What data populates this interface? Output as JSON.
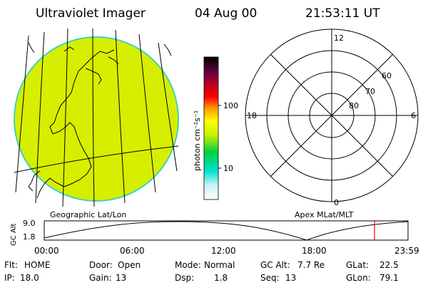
{
  "header": {
    "title": "Ultraviolet Imager",
    "date": "04 Aug 00",
    "time": "21:53:11 UT"
  },
  "left_panel": {
    "label": "Geographic Lat/Lon"
  },
  "colorbar": {
    "unit_label": "photon cm⁻²s⁻¹",
    "tick_labels": [
      "100",
      "10"
    ],
    "colors": [
      "#ffffff",
      "#b0f0f0",
      "#00e0d0",
      "#00d040",
      "#c8f000",
      "#ffff00",
      "#ff9900",
      "#ff0000",
      "#b00030",
      "#400030",
      "#000000"
    ]
  },
  "right_panel": {
    "label": "Apex MLat/MLT",
    "mlt_labels": {
      "top": "12",
      "bottom": "0",
      "left": "18",
      "right": "6"
    },
    "lat_labels": [
      "60",
      "70",
      "80"
    ]
  },
  "timeline": {
    "y_axis_label": "GC Alt",
    "y_ticks": [
      "9.0",
      "1.8"
    ],
    "x_ticks": [
      "00:00",
      "06:00",
      "12:00",
      "18:00",
      "23:59"
    ],
    "marker_color": "#ff0000"
  },
  "status": {
    "row1": [
      {
        "label": "Flt:",
        "value": "HOME"
      },
      {
        "label": "Door:",
        "value": "Open"
      },
      {
        "label": "Mode:",
        "value": "Normal"
      },
      {
        "label": "GC Alt:",
        "value": "7.7 Re"
      },
      {
        "label": "GLat:",
        "value": "22.5"
      }
    ],
    "row2": [
      {
        "label": "IP:",
        "value": "18.0"
      },
      {
        "label": "Gain:",
        "value": "13"
      },
      {
        "label": "Dsp:",
        "value": "1.8"
      },
      {
        "label": "Seq:",
        "value": "13"
      },
      {
        "label": "GLon:",
        "value": "79.1"
      }
    ]
  },
  "colors": {
    "earth_fill": "#d8f000",
    "earth_edge": "#40d0c0",
    "line": "#000000"
  }
}
